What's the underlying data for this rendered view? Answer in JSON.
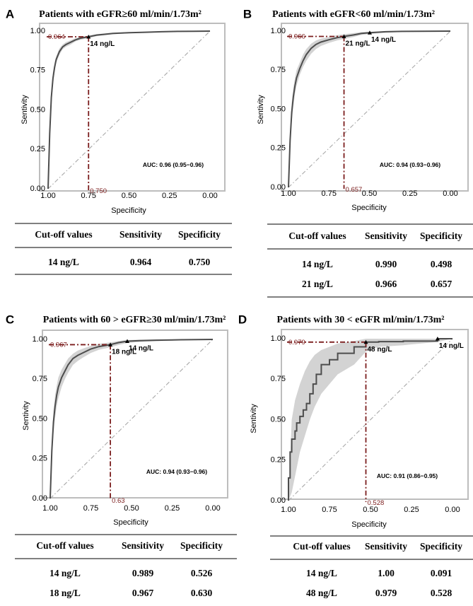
{
  "colors": {
    "curve": "#4d4d4d",
    "band": "#d3d3d3",
    "cutoff": "#7b1d1d",
    "diagonal": "#a8a8a8",
    "frame": "#bdbdbd",
    "text": "#000000"
  },
  "chart_data": [
    {
      "type": "line",
      "panel_letter": "A",
      "title": "Patients with eGFR≥60 ml/min/1.73m²",
      "xlabel": "Specificity",
      "ylabel": "Sentivity",
      "x_ticks": [
        "1.00",
        "0.75",
        "0.50",
        "0.25",
        "0.00"
      ],
      "y_ticks": [
        "0.00",
        "0.25",
        "0.50",
        "0.75",
        "1.00"
      ],
      "xlim": [
        1.0,
        0.0
      ],
      "ylim": [
        0.0,
        1.0
      ],
      "auc_label": "AUC: 0.96 (0.95−0.96)",
      "series": [
        {
          "specificity": [
            1.0,
            0.99,
            0.98,
            0.97,
            0.96,
            0.95,
            0.93,
            0.91,
            0.89,
            0.86,
            0.83,
            0.8,
            0.75,
            0.7,
            0.65,
            0.6,
            0.5,
            0.4,
            0.3,
            0.2,
            0.1,
            0.0
          ],
          "sensitivity": [
            0.0,
            0.35,
            0.58,
            0.7,
            0.77,
            0.82,
            0.87,
            0.9,
            0.915,
            0.93,
            0.945,
            0.955,
            0.964,
            0.975,
            0.98,
            0.985,
            0.99,
            0.993,
            0.996,
            0.998,
            0.999,
            1.0
          ],
          "band_lo": [
            0.0,
            0.3,
            0.53,
            0.66,
            0.74,
            0.8,
            0.85,
            0.885,
            0.9,
            0.915,
            0.935,
            0.945,
            0.955,
            0.968,
            0.974,
            0.98,
            0.986,
            0.99,
            0.994,
            0.997,
            0.998,
            1.0
          ],
          "band_hi": [
            0.0,
            0.4,
            0.63,
            0.74,
            0.8,
            0.84,
            0.89,
            0.915,
            0.93,
            0.942,
            0.955,
            0.963,
            0.972,
            0.981,
            0.985,
            0.989,
            0.993,
            0.996,
            0.998,
            0.999,
            1.0,
            1.0
          ]
        }
      ],
      "cutoffs": [
        {
          "label": "14 ng/L",
          "specificity": 0.75,
          "sensitivity": 0.964,
          "sens_text": "0.964",
          "spec_text": "0.750"
        }
      ],
      "table": {
        "headers": [
          "Cut-off values",
          "Sensitivity",
          "Specificity"
        ],
        "rows": [
          [
            "14 ng/L",
            "0.964",
            "0.750"
          ]
        ]
      }
    },
    {
      "type": "line",
      "panel_letter": "B",
      "title": "Patients with eGFR<60 ml/min/1.73m²",
      "xlabel": "Specificity",
      "ylabel": "Sentivity",
      "x_ticks": [
        "1.00",
        "0.75",
        "0.50",
        "0.25",
        "0.00"
      ],
      "y_ticks": [
        "0.00",
        "0.25",
        "0.50",
        "0.75",
        "1.00"
      ],
      "xlim": [
        1.0,
        0.0
      ],
      "ylim": [
        0.0,
        1.0
      ],
      "auc_label": "AUC: 0.94 (0.93−0.96)",
      "series": [
        {
          "specificity": [
            1.0,
            0.99,
            0.98,
            0.97,
            0.96,
            0.95,
            0.93,
            0.91,
            0.89,
            0.86,
            0.83,
            0.8,
            0.75,
            0.7,
            0.657,
            0.6,
            0.55,
            0.498,
            0.4,
            0.3,
            0.2,
            0.0
          ],
          "sensitivity": [
            0.0,
            0.3,
            0.48,
            0.58,
            0.65,
            0.7,
            0.76,
            0.81,
            0.85,
            0.89,
            0.915,
            0.93,
            0.945,
            0.958,
            0.966,
            0.975,
            0.985,
            0.99,
            0.996,
            0.998,
            0.999,
            1.0
          ],
          "band_lo": [
            0.0,
            0.25,
            0.42,
            0.52,
            0.6,
            0.65,
            0.72,
            0.77,
            0.81,
            0.855,
            0.885,
            0.905,
            0.925,
            0.94,
            0.95,
            0.962,
            0.975,
            0.982,
            0.99,
            0.995,
            0.997,
            1.0
          ],
          "band_hi": [
            0.0,
            0.35,
            0.54,
            0.64,
            0.7,
            0.75,
            0.8,
            0.85,
            0.885,
            0.92,
            0.94,
            0.952,
            0.963,
            0.974,
            0.98,
            0.987,
            0.993,
            0.996,
            0.999,
            1.0,
            1.0,
            1.0
          ]
        }
      ],
      "cutoffs": [
        {
          "label": "14 ng/L",
          "specificity": 0.498,
          "sensitivity": 0.99,
          "sens_text": "0.990",
          "spec_text": "0.498"
        },
        {
          "label": "21 ng/L",
          "specificity": 0.657,
          "sensitivity": 0.966,
          "sens_text": "0.966",
          "spec_text": "0.657"
        }
      ],
      "table": {
        "headers": [
          "Cut-off values",
          "Sensitivity",
          "Specificity"
        ],
        "rows": [
          [
            "14 ng/L",
            "0.990",
            "0.498"
          ],
          [
            "21 ng/L",
            "0.966",
            "0.657"
          ]
        ]
      }
    },
    {
      "type": "line",
      "panel_letter": "C",
      "title": "Patients with 60 > eGFR≥30 ml/min/1.73m²",
      "xlabel": "Specificity",
      "ylabel": "Sentivity",
      "x_ticks": [
        "1.00",
        "0.75",
        "0.50",
        "0.25",
        "0.00"
      ],
      "y_ticks": [
        "0.00",
        "0.25",
        "0.50",
        "0.75",
        "1.00"
      ],
      "xlim": [
        1.0,
        0.0
      ],
      "ylim": [
        0.0,
        1.0
      ],
      "auc_label": "AUC: 0.94 (0.93−0.96)",
      "series": [
        {
          "specificity": [
            1.0,
            0.99,
            0.98,
            0.97,
            0.96,
            0.95,
            0.93,
            0.91,
            0.89,
            0.86,
            0.83,
            0.8,
            0.75,
            0.7,
            0.63,
            0.58,
            0.526,
            0.45,
            0.35,
            0.25,
            0.1,
            0.0
          ],
          "sensitivity": [
            0.0,
            0.3,
            0.48,
            0.58,
            0.65,
            0.7,
            0.76,
            0.8,
            0.84,
            0.88,
            0.9,
            0.915,
            0.94,
            0.955,
            0.967,
            0.98,
            0.989,
            0.992,
            0.995,
            0.997,
            0.999,
            1.0
          ],
          "band_lo": [
            0.0,
            0.24,
            0.41,
            0.51,
            0.58,
            0.63,
            0.7,
            0.75,
            0.79,
            0.84,
            0.865,
            0.885,
            0.915,
            0.935,
            0.95,
            0.965,
            0.978,
            0.984,
            0.989,
            0.993,
            0.997,
            1.0
          ],
          "band_hi": [
            0.0,
            0.36,
            0.55,
            0.65,
            0.71,
            0.76,
            0.81,
            0.845,
            0.88,
            0.91,
            0.93,
            0.942,
            0.96,
            0.972,
            0.981,
            0.99,
            0.996,
            0.998,
            0.999,
            1.0,
            1.0,
            1.0
          ]
        }
      ],
      "cutoffs": [
        {
          "label": "14 ng/L",
          "specificity": 0.526,
          "sensitivity": 0.989,
          "sens_text": "0.989",
          "spec_text": "0.526"
        },
        {
          "label": "18 ng/L",
          "specificity": 0.63,
          "sensitivity": 0.967,
          "sens_text": "0.967",
          "spec_text": "0.63"
        }
      ],
      "table": {
        "headers": [
          "Cut-off values",
          "Sensitivity",
          "Specificity"
        ],
        "rows": [
          [
            "14 ng/L",
            "0.989",
            "0.526"
          ],
          [
            "18 ng/L",
            "0.967",
            "0.630"
          ]
        ]
      }
    },
    {
      "type": "line",
      "panel_letter": "D",
      "title": "Patients with 30 < eGFR ml/min/1.73m²",
      "xlabel": "Specificity",
      "ylabel": "Sentivity",
      "x_ticks": [
        "1.00",
        "0.75",
        "0.50",
        "0.25",
        "0.00"
      ],
      "y_ticks": [
        "0.00",
        "0.25",
        "0.50",
        "0.75",
        "1.00"
      ],
      "xlim": [
        1.0,
        0.0
      ],
      "ylim": [
        0.0,
        1.0
      ],
      "auc_label": "AUC: 0.91 (0.86−0.95)",
      "series": [
        {
          "specificity": [
            1.0,
            1.0,
            0.99,
            0.99,
            0.98,
            0.98,
            0.96,
            0.96,
            0.95,
            0.95,
            0.93,
            0.93,
            0.91,
            0.91,
            0.89,
            0.89,
            0.87,
            0.87,
            0.85,
            0.85,
            0.83,
            0.83,
            0.8,
            0.8,
            0.75,
            0.75,
            0.7,
            0.7,
            0.6,
            0.6,
            0.528,
            0.528,
            0.45,
            0.45,
            0.3,
            0.3,
            0.091,
            0.091,
            0.0
          ],
          "sensitivity": [
            0.0,
            0.14,
            0.14,
            0.3,
            0.3,
            0.38,
            0.38,
            0.43,
            0.43,
            0.48,
            0.48,
            0.52,
            0.52,
            0.56,
            0.56,
            0.6,
            0.6,
            0.66,
            0.66,
            0.72,
            0.72,
            0.78,
            0.78,
            0.84,
            0.84,
            0.87,
            0.87,
            0.91,
            0.91,
            0.95,
            0.95,
            0.979,
            0.979,
            0.982,
            0.982,
            0.985,
            0.985,
            1.0,
            1.0
          ],
          "band_x": [
            1.0,
            0.98,
            0.96,
            0.93,
            0.9,
            0.87,
            0.84,
            0.8,
            0.75,
            0.7,
            0.6,
            0.528,
            0.45,
            0.3,
            0.25,
            0.091,
            0.0
          ],
          "band_lo": [
            0.0,
            0.05,
            0.15,
            0.3,
            0.4,
            0.5,
            0.58,
            0.66,
            0.72,
            0.78,
            0.84,
            0.92,
            0.95,
            0.96,
            0.965,
            0.98,
            1.0
          ],
          "band_hi": [
            0.0,
            0.5,
            0.62,
            0.72,
            0.8,
            0.86,
            0.9,
            0.93,
            0.95,
            0.97,
            0.985,
            1.0,
            1.0,
            1.0,
            1.0,
            1.0,
            1.0
          ]
        }
      ],
      "cutoffs": [
        {
          "label": "14 ng/L",
          "specificity": 0.091,
          "sensitivity": 1.0,
          "sens_text": "1.00",
          "spec_text": "0.091"
        },
        {
          "label": "48 ng/L",
          "specificity": 0.528,
          "sensitivity": 0.979,
          "sens_text": "0.979",
          "spec_text": "0.528"
        }
      ],
      "table": {
        "headers": [
          "Cut-off values",
          "Sensitivity",
          "Specificity"
        ],
        "rows": [
          [
            "14 ng/L",
            "1.00",
            "0.091"
          ],
          [
            "48 ng/L",
            "0.979",
            "0.528"
          ]
        ]
      }
    }
  ]
}
